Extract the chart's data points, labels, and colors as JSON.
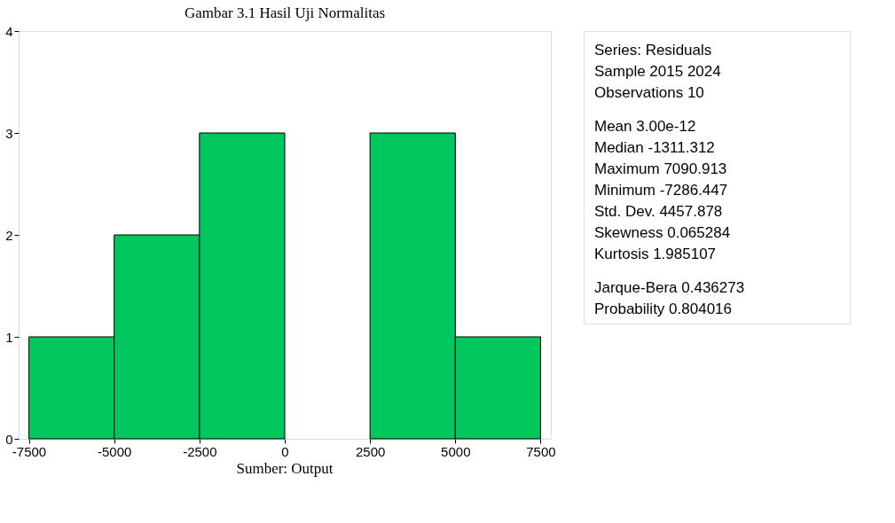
{
  "chart_data": [
    {
      "type": "histogram",
      "title": "Gambar 3.1 Hasil Uji Normalitas",
      "bins": [
        -7500,
        -5000,
        -2500,
        0,
        2500,
        5000,
        7500
      ],
      "values": [
        1,
        2,
        3,
        0,
        3,
        1
      ],
      "color": "#00c65e",
      "xlim": [
        -7800,
        7800
      ],
      "xticks": [
        -7500,
        -5000,
        -2500,
        0,
        2500,
        5000,
        7500
      ],
      "ylim": [
        0,
        4
      ],
      "yticks": [
        0,
        1,
        2,
        3,
        4
      ],
      "grid": false,
      "annotations": [
        "Sumber: Output"
      ]
    },
    {
      "type": "other",
      "annotations": [
        "Series: Residuals",
        "Sample 2015 2024",
        "Observations 10",
        "Mean 3.00e-12",
        "Median -1311.312",
        "Maximum 7090.913",
        "Minimum -7286.447",
        "Std. Dev. 4457.878",
        "Skewness 0.065284",
        "Kurtosis 1.985107",
        "Jarque-Bera 0.436273",
        "Probability 0.804016"
      ]
    }
  ]
}
